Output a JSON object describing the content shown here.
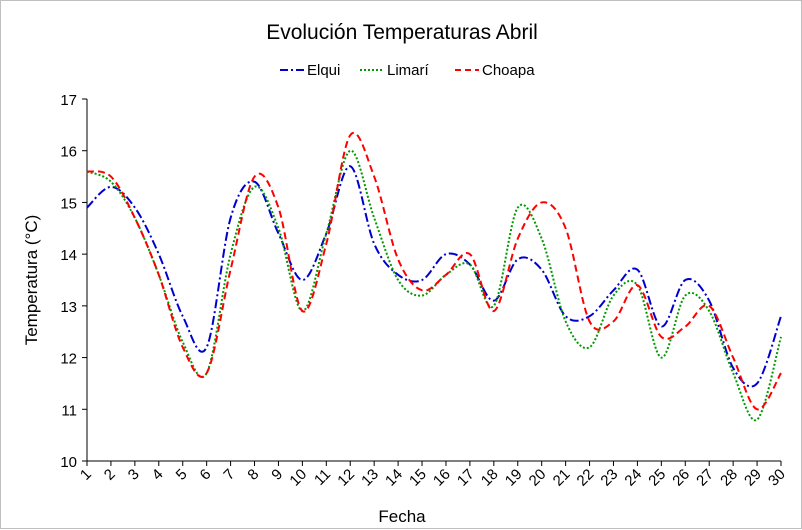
{
  "chart_data": {
    "type": "line",
    "title": "Evolución Temperaturas Abril",
    "xlabel": "Fecha",
    "ylabel": "Temperatura (°C)",
    "ylim": [
      10,
      17
    ],
    "yticks": [
      "10",
      "11",
      "12",
      "13",
      "14",
      "15",
      "16",
      "17"
    ],
    "categories": [
      "1",
      "2",
      "3",
      "4",
      "5",
      "6",
      "7",
      "8",
      "9",
      "10",
      "11",
      "12",
      "13",
      "14",
      "15",
      "16",
      "17",
      "18",
      "19",
      "20",
      "21",
      "22",
      "23",
      "24",
      "25",
      "26",
      "27",
      "28",
      "29",
      "30"
    ],
    "legend_position": "top",
    "grid": false,
    "series": [
      {
        "name": "Elqui",
        "color": "#0000cc",
        "dash": "dash-dot",
        "values": [
          14.9,
          15.3,
          14.9,
          14.0,
          12.8,
          12.2,
          14.7,
          15.4,
          14.4,
          13.5,
          14.4,
          15.7,
          14.2,
          13.6,
          13.5,
          14.0,
          13.8,
          13.1,
          13.9,
          13.7,
          12.8,
          12.8,
          13.3,
          13.7,
          12.6,
          13.5,
          13.1,
          11.8,
          11.5,
          12.8
        ]
      },
      {
        "name": "Limarí",
        "color": "#009900",
        "dash": "dotted",
        "values": [
          15.6,
          15.4,
          14.7,
          13.6,
          12.3,
          11.7,
          14.0,
          15.3,
          14.5,
          12.9,
          14.4,
          16.0,
          14.7,
          13.5,
          13.2,
          13.6,
          13.8,
          13.0,
          14.9,
          14.3,
          12.7,
          12.2,
          13.2,
          13.4,
          12.0,
          13.2,
          12.9,
          11.7,
          10.8,
          12.4
        ]
      },
      {
        "name": "Choapa",
        "color": "#ff0000",
        "dash": "dashed",
        "values": [
          15.6,
          15.5,
          14.7,
          13.6,
          12.2,
          11.7,
          13.7,
          15.5,
          14.9,
          12.9,
          14.2,
          16.3,
          15.5,
          13.9,
          13.3,
          13.6,
          14.0,
          12.9,
          14.3,
          15.0,
          14.5,
          12.7,
          12.7,
          13.4,
          12.4,
          12.6,
          13.0,
          12.0,
          11.0,
          11.7
        ]
      }
    ]
  }
}
